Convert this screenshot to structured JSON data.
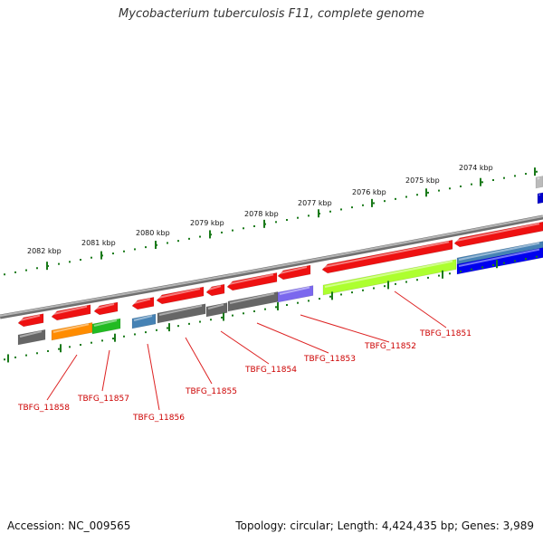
{
  "title": "Mycobacterium tuberculosis F11, complete genome",
  "footer": {
    "accession": "Accession: NC_009565",
    "summary": "Topology: circular; Length: 4,424,435 bp; Genes: 3,989"
  },
  "colors": {
    "backbone": "#8a8a8a",
    "tick": "#1a7a1a",
    "forward_gene": "#ee1111",
    "reverse_gene": "#666666",
    "label_line": "#dd2222",
    "label_text": "#cc0000"
  },
  "ruler": {
    "labels": [
      "2074 kbp",
      "2075 kbp",
      "2076 kbp",
      "2077 kbp",
      "2078 kbp",
      "2079 kbp",
      "2080 kbp",
      "2081 kbp",
      "2082 kbp"
    ]
  },
  "gene_labels": [
    "TBFG_11851",
    "TBFG_11852",
    "TBFG_11853",
    "TBFG_11854",
    "TBFG_11855",
    "TBFG_11856",
    "TBFG_11857",
    "TBFG_11858"
  ]
}
